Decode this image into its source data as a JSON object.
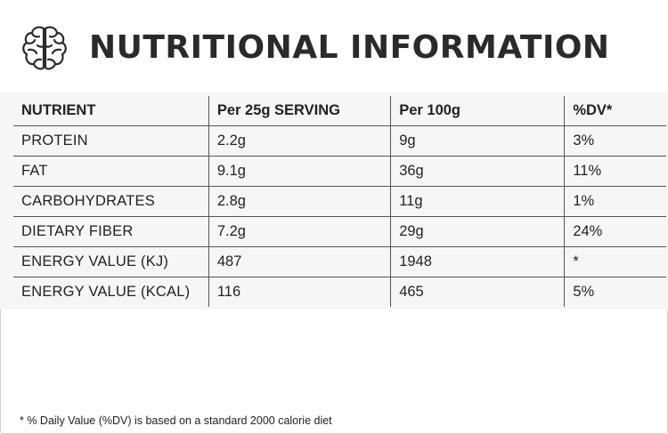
{
  "title": "NUTRITIONAL INFORMATION",
  "logo": {
    "icon": "brain-icon",
    "color": "#2a2a2a"
  },
  "table": {
    "headers": [
      "NUTRIENT",
      "Per 25g SERVING",
      "Per 100g",
      "%DV*"
    ],
    "rows": [
      [
        "PROTEIN",
        "2.2g",
        "9g",
        "3%"
      ],
      [
        "FAT",
        "9.1g",
        "36g",
        "11%"
      ],
      [
        "CARBOHYDRATES",
        "2.8g",
        "11g",
        "1%"
      ],
      [
        "DIETARY FIBER",
        "7.2g",
        "29g",
        "24%"
      ],
      [
        "ENERGY VALUE (KJ)",
        "487",
        "1948",
        "*"
      ],
      [
        "ENERGY VALUE (KCAL)",
        "116",
        "465",
        "5%"
      ]
    ]
  },
  "footnote": "* % Daily Value (%DV) is based on a standard 2000 calorie diet",
  "colors": {
    "background": "#ffffff",
    "table_background": "#f6f6f6",
    "text": "#222222",
    "grid": "#555555"
  }
}
